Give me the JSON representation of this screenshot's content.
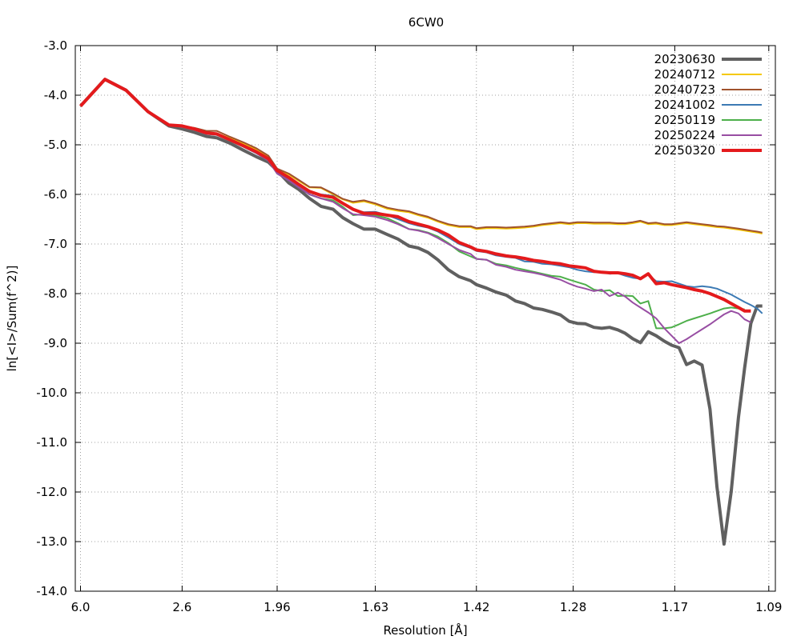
{
  "chart_data": {
    "type": "line",
    "title": "6CW0",
    "xlabel": "Resolution [Å]",
    "ylabel": "ln[<I>/Sum(f^2)]",
    "ylim": [
      -14.0,
      -3.0
    ],
    "yticks": [
      "-3.0",
      "-4.0",
      "-5.0",
      "-6.0",
      "-7.0",
      "-8.0",
      "-9.0",
      "-10.0",
      "-11.0",
      "-12.0",
      "-13.0",
      "-14.0"
    ],
    "xticks": [
      {
        "label": "6.0",
        "value": 6.0
      },
      {
        "label": "2.6",
        "value": 2.6
      },
      {
        "label": "1.96",
        "value": 1.96
      },
      {
        "label": "1.63",
        "value": 1.63
      },
      {
        "label": "1.42",
        "value": 1.42
      },
      {
        "label": "1.28",
        "value": 1.28
      },
      {
        "label": "1.17",
        "value": 1.17
      },
      {
        "label": "1.09",
        "value": 1.09
      }
    ],
    "xlim_resolution": [
      6.8,
      1.085
    ],
    "x_scale": "inverse-square resolution",
    "grid": true,
    "legend_position": "top-right",
    "series": [
      {
        "name": "20230630",
        "color": "#606060",
        "width": 4,
        "resolution": [
          6.0,
          4.2,
          3.5,
          3.05,
          2.75,
          2.6,
          2.48,
          2.38,
          2.3,
          2.21,
          2.13,
          2.06,
          2.0,
          1.96,
          1.91,
          1.87,
          1.83,
          1.79,
          1.75,
          1.72,
          1.69,
          1.66,
          1.63,
          1.6,
          1.575,
          1.55,
          1.53,
          1.51,
          1.49,
          1.47,
          1.45,
          1.43,
          1.42,
          1.403,
          1.388,
          1.372,
          1.358,
          1.345,
          1.332,
          1.32,
          1.308,
          1.296,
          1.285,
          1.275,
          1.265,
          1.255,
          1.246,
          1.237,
          1.228,
          1.22,
          1.212,
          1.204,
          1.196,
          1.188,
          1.18,
          1.173,
          1.166,
          1.159,
          1.152,
          1.145,
          1.138,
          1.132,
          1.126,
          1.12,
          1.114,
          1.109,
          1.104,
          1.099,
          1.095
        ],
        "values": [
          -4.22,
          -3.68,
          -3.9,
          -4.33,
          -4.62,
          -4.68,
          -4.75,
          -4.83,
          -4.86,
          -4.97,
          -5.11,
          -5.24,
          -5.35,
          -5.52,
          -5.77,
          -5.9,
          -6.08,
          -6.24,
          -6.3,
          -6.47,
          -6.59,
          -6.7,
          -6.7,
          -6.81,
          -6.9,
          -7.04,
          -7.08,
          -7.17,
          -7.32,
          -7.52,
          -7.66,
          -7.74,
          -7.82,
          -7.89,
          -7.97,
          -8.03,
          -8.15,
          -8.2,
          -8.29,
          -8.32,
          -8.37,
          -8.43,
          -8.56,
          -8.6,
          -8.61,
          -8.68,
          -8.7,
          -8.68,
          -8.73,
          -8.8,
          -8.91,
          -8.99,
          -8.77,
          -8.85,
          -8.96,
          -9.04,
          -9.09,
          -9.43,
          -9.36,
          -9.44,
          -10.33,
          -11.9,
          -13.05,
          -12.0,
          -10.5,
          -9.5,
          -8.6,
          -8.25,
          -8.25
        ]
      },
      {
        "name": "20240712",
        "color": "#f5c800",
        "width": 2,
        "resolution": [
          6.0,
          4.2,
          3.5,
          3.05,
          2.75,
          2.6,
          2.48,
          2.38,
          2.3,
          2.21,
          2.13,
          2.06,
          2.0,
          1.96,
          1.91,
          1.87,
          1.83,
          1.79,
          1.75,
          1.72,
          1.69,
          1.66,
          1.63,
          1.6,
          1.575,
          1.55,
          1.53,
          1.51,
          1.49,
          1.47,
          1.45,
          1.43,
          1.42,
          1.403,
          1.388,
          1.372,
          1.358,
          1.345,
          1.332,
          1.32,
          1.308,
          1.296,
          1.285,
          1.275,
          1.265,
          1.255,
          1.246,
          1.237,
          1.228,
          1.22,
          1.212,
          1.204,
          1.196,
          1.188,
          1.18,
          1.173,
          1.166,
          1.159,
          1.152,
          1.145,
          1.138,
          1.132,
          1.126,
          1.12,
          1.114,
          1.109,
          1.104,
          1.099,
          1.095
        ],
        "values": [
          -4.22,
          -3.68,
          -3.9,
          -4.33,
          -4.6,
          -4.62,
          -4.68,
          -4.76,
          -4.77,
          -4.87,
          -4.97,
          -5.09,
          -5.25,
          -5.5,
          -5.6,
          -5.73,
          -5.86,
          -5.87,
          -6.0,
          -6.1,
          -6.17,
          -6.14,
          -6.2,
          -6.29,
          -6.33,
          -6.36,
          -6.42,
          -6.47,
          -6.55,
          -6.62,
          -6.66,
          -6.66,
          -6.7,
          -6.68,
          -6.68,
          -6.69,
          -6.68,
          -6.67,
          -6.65,
          -6.62,
          -6.6,
          -6.58,
          -6.6,
          -6.58,
          -6.58,
          -6.59,
          -6.59,
          -6.59,
          -6.6,
          -6.6,
          -6.58,
          -6.55,
          -6.6,
          -6.59,
          -6.62,
          -6.62,
          -6.6,
          -6.58,
          -6.6,
          -6.62,
          -6.64,
          -6.66,
          -6.67,
          -6.69,
          -6.71,
          -6.73,
          -6.75,
          -6.77,
          -6.79
        ]
      },
      {
        "name": "20240723",
        "color": "#a0522d",
        "width": 2,
        "resolution": [
          6.0,
          4.2,
          3.5,
          3.05,
          2.75,
          2.6,
          2.48,
          2.38,
          2.3,
          2.21,
          2.13,
          2.06,
          2.0,
          1.96,
          1.91,
          1.87,
          1.83,
          1.79,
          1.75,
          1.72,
          1.69,
          1.66,
          1.63,
          1.6,
          1.575,
          1.55,
          1.53,
          1.51,
          1.49,
          1.47,
          1.45,
          1.43,
          1.42,
          1.403,
          1.388,
          1.372,
          1.358,
          1.345,
          1.332,
          1.32,
          1.308,
          1.296,
          1.285,
          1.275,
          1.265,
          1.255,
          1.246,
          1.237,
          1.228,
          1.22,
          1.212,
          1.204,
          1.196,
          1.188,
          1.18,
          1.173,
          1.166,
          1.159,
          1.152,
          1.145,
          1.138,
          1.132,
          1.126,
          1.12,
          1.114,
          1.109,
          1.104,
          1.099,
          1.095
        ],
        "values": [
          -4.22,
          -3.68,
          -3.9,
          -4.33,
          -4.6,
          -4.62,
          -4.66,
          -4.72,
          -4.72,
          -4.84,
          -4.95,
          -5.07,
          -5.22,
          -5.48,
          -5.58,
          -5.71,
          -5.85,
          -5.86,
          -5.98,
          -6.09,
          -6.15,
          -6.12,
          -6.18,
          -6.27,
          -6.31,
          -6.34,
          -6.4,
          -6.45,
          -6.53,
          -6.6,
          -6.64,
          -6.64,
          -6.68,
          -6.66,
          -6.66,
          -6.67,
          -6.66,
          -6.65,
          -6.63,
          -6.6,
          -6.58,
          -6.56,
          -6.58,
          -6.56,
          -6.56,
          -6.57,
          -6.57,
          -6.57,
          -6.58,
          -6.58,
          -6.56,
          -6.53,
          -6.58,
          -6.57,
          -6.6,
          -6.6,
          -6.58,
          -6.56,
          -6.58,
          -6.6,
          -6.62,
          -6.64,
          -6.65,
          -6.67,
          -6.69,
          -6.71,
          -6.73,
          -6.75,
          -6.77
        ]
      },
      {
        "name": "20241002",
        "color": "#3c7ab4",
        "width": 2,
        "resolution": [
          6.0,
          4.2,
          3.5,
          3.05,
          2.75,
          2.6,
          2.48,
          2.38,
          2.3,
          2.21,
          2.13,
          2.06,
          2.0,
          1.96,
          1.91,
          1.87,
          1.83,
          1.79,
          1.75,
          1.72,
          1.69,
          1.66,
          1.63,
          1.6,
          1.575,
          1.55,
          1.53,
          1.51,
          1.49,
          1.47,
          1.45,
          1.43,
          1.42,
          1.403,
          1.388,
          1.372,
          1.358,
          1.345,
          1.332,
          1.32,
          1.308,
          1.296,
          1.285,
          1.275,
          1.265,
          1.255,
          1.246,
          1.237,
          1.228,
          1.22,
          1.212,
          1.204,
          1.196,
          1.188,
          1.18,
          1.173,
          1.166,
          1.159,
          1.152,
          1.145,
          1.138,
          1.132,
          1.126,
          1.12,
          1.114,
          1.109,
          1.104,
          1.099,
          1.095
        ],
        "values": [
          -4.22,
          -3.68,
          -3.9,
          -4.33,
          -4.6,
          -4.63,
          -4.69,
          -4.77,
          -4.79,
          -4.9,
          -5.02,
          -5.15,
          -5.3,
          -5.55,
          -5.68,
          -5.82,
          -5.96,
          -6.0,
          -6.03,
          -6.17,
          -6.3,
          -6.36,
          -6.35,
          -6.42,
          -6.5,
          -6.58,
          -6.63,
          -6.67,
          -6.75,
          -6.87,
          -7.0,
          -7.08,
          -7.14,
          -7.17,
          -7.23,
          -7.26,
          -7.28,
          -7.35,
          -7.36,
          -7.4,
          -7.41,
          -7.44,
          -7.47,
          -7.52,
          -7.55,
          -7.57,
          -7.56,
          -7.6,
          -7.59,
          -7.64,
          -7.68,
          -7.7,
          -7.62,
          -7.75,
          -7.76,
          -7.75,
          -7.8,
          -7.85,
          -7.87,
          -7.85,
          -7.87,
          -7.9,
          -7.96,
          -8.02,
          -8.1,
          -8.17,
          -8.23,
          -8.3,
          -8.4
        ]
      },
      {
        "name": "20250119",
        "color": "#4daf4a",
        "width": 2,
        "resolution": [
          6.0,
          4.2,
          3.5,
          3.05,
          2.75,
          2.6,
          2.48,
          2.38,
          2.3,
          2.21,
          2.13,
          2.06,
          2.0,
          1.96,
          1.91,
          1.87,
          1.83,
          1.79,
          1.75,
          1.72,
          1.69,
          1.66,
          1.63,
          1.6,
          1.575,
          1.55,
          1.53,
          1.51,
          1.49,
          1.47,
          1.45,
          1.43,
          1.42,
          1.403,
          1.388,
          1.372,
          1.358,
          1.345,
          1.332,
          1.32,
          1.308,
          1.296,
          1.285,
          1.275,
          1.265,
          1.255,
          1.246,
          1.237,
          1.228,
          1.22,
          1.212,
          1.204,
          1.196,
          1.188,
          1.18,
          1.173,
          1.166,
          1.159,
          1.152,
          1.145,
          1.138,
          1.132,
          1.126,
          1.12,
          1.114,
          1.109
        ],
        "values": [
          -4.22,
          -3.68,
          -3.9,
          -4.33,
          -4.6,
          -4.64,
          -4.7,
          -4.78,
          -4.8,
          -4.92,
          -5.04,
          -5.17,
          -5.32,
          -5.58,
          -5.72,
          -5.86,
          -6.0,
          -6.08,
          -6.12,
          -6.25,
          -6.42,
          -6.4,
          -6.42,
          -6.48,
          -6.58,
          -6.7,
          -6.72,
          -6.77,
          -6.85,
          -6.98,
          -7.15,
          -7.25,
          -7.3,
          -7.32,
          -7.4,
          -7.43,
          -7.48,
          -7.52,
          -7.56,
          -7.6,
          -7.64,
          -7.66,
          -7.72,
          -7.77,
          -7.82,
          -7.92,
          -7.95,
          -7.93,
          -8.05,
          -8.04,
          -8.05,
          -8.2,
          -8.15,
          -8.7,
          -8.7,
          -8.68,
          -8.62,
          -8.55,
          -8.5,
          -8.45,
          -8.4,
          -8.35,
          -8.3,
          -8.28,
          -8.3,
          -8.32
        ]
      },
      {
        "name": "20250224",
        "color": "#984ea3",
        "width": 2,
        "resolution": [
          6.0,
          4.2,
          3.5,
          3.05,
          2.75,
          2.6,
          2.48,
          2.38,
          2.3,
          2.21,
          2.13,
          2.06,
          2.0,
          1.96,
          1.91,
          1.87,
          1.83,
          1.79,
          1.75,
          1.72,
          1.69,
          1.66,
          1.63,
          1.6,
          1.575,
          1.55,
          1.53,
          1.51,
          1.49,
          1.47,
          1.45,
          1.43,
          1.42,
          1.403,
          1.388,
          1.372,
          1.358,
          1.345,
          1.332,
          1.32,
          1.308,
          1.296,
          1.285,
          1.275,
          1.265,
          1.255,
          1.246,
          1.237,
          1.228,
          1.22,
          1.212,
          1.204,
          1.196,
          1.188,
          1.18,
          1.173,
          1.166,
          1.159,
          1.152,
          1.145,
          1.138,
          1.132,
          1.126,
          1.12,
          1.114,
          1.109,
          1.104
        ],
        "values": [
          -4.22,
          -3.68,
          -3.9,
          -4.33,
          -4.6,
          -4.64,
          -4.7,
          -4.78,
          -4.8,
          -4.92,
          -5.04,
          -5.17,
          -5.32,
          -5.58,
          -5.72,
          -5.86,
          -6.0,
          -6.08,
          -6.15,
          -6.28,
          -6.4,
          -6.42,
          -6.45,
          -6.52,
          -6.6,
          -6.7,
          -6.73,
          -6.78,
          -6.88,
          -7.0,
          -7.12,
          -7.2,
          -7.3,
          -7.32,
          -7.42,
          -7.46,
          -7.52,
          -7.55,
          -7.58,
          -7.62,
          -7.67,
          -7.72,
          -7.8,
          -7.86,
          -7.9,
          -7.95,
          -7.92,
          -8.05,
          -7.98,
          -8.06,
          -8.18,
          -8.28,
          -8.38,
          -8.5,
          -8.7,
          -8.85,
          -9.0,
          -8.92,
          -8.82,
          -8.72,
          -8.62,
          -8.52,
          -8.42,
          -8.35,
          -8.4,
          -8.52,
          -8.58
        ]
      },
      {
        "name": "20250320",
        "color": "#e41a1c",
        "width": 4,
        "resolution": [
          6.0,
          4.2,
          3.5,
          3.05,
          2.75,
          2.6,
          2.48,
          2.38,
          2.3,
          2.21,
          2.13,
          2.06,
          2.0,
          1.96,
          1.91,
          1.87,
          1.83,
          1.79,
          1.75,
          1.72,
          1.69,
          1.66,
          1.63,
          1.6,
          1.575,
          1.55,
          1.53,
          1.51,
          1.49,
          1.47,
          1.45,
          1.43,
          1.42,
          1.403,
          1.388,
          1.372,
          1.358,
          1.345,
          1.332,
          1.32,
          1.308,
          1.296,
          1.285,
          1.275,
          1.265,
          1.255,
          1.246,
          1.237,
          1.228,
          1.22,
          1.212,
          1.204,
          1.196,
          1.188,
          1.18,
          1.173,
          1.166,
          1.159,
          1.152,
          1.145,
          1.138,
          1.132,
          1.126,
          1.12,
          1.114,
          1.109,
          1.104
        ],
        "values": [
          -4.22,
          -3.68,
          -3.9,
          -4.33,
          -4.6,
          -4.62,
          -4.68,
          -4.76,
          -4.78,
          -4.9,
          -5.02,
          -5.14,
          -5.28,
          -5.52,
          -5.66,
          -5.8,
          -5.94,
          -6.02,
          -6.06,
          -6.18,
          -6.3,
          -6.38,
          -6.38,
          -6.42,
          -6.45,
          -6.55,
          -6.6,
          -6.65,
          -6.72,
          -6.82,
          -6.97,
          -7.06,
          -7.12,
          -7.15,
          -7.2,
          -7.24,
          -7.26,
          -7.29,
          -7.33,
          -7.35,
          -7.38,
          -7.4,
          -7.44,
          -7.46,
          -7.48,
          -7.55,
          -7.57,
          -7.58,
          -7.58,
          -7.6,
          -7.63,
          -7.7,
          -7.6,
          -7.8,
          -7.78,
          -7.82,
          -7.85,
          -7.88,
          -7.92,
          -7.95,
          -8.0,
          -8.06,
          -8.12,
          -8.2,
          -8.28,
          -8.35,
          -8.35
        ]
      }
    ]
  }
}
